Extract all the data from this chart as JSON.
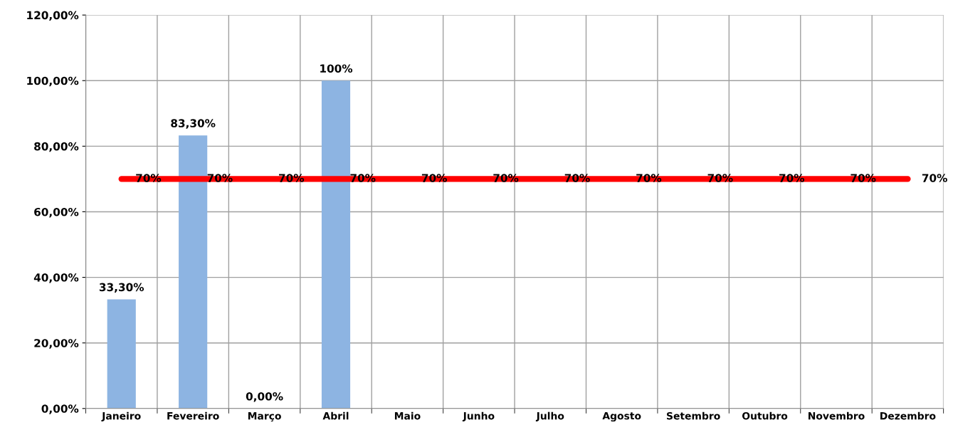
{
  "chart_data": {
    "type": "bar",
    "categories": [
      "Janeiro",
      "Fevereiro",
      "Março",
      "Abril",
      "Maio",
      "Junho",
      "Julho",
      "Agosto",
      "Setembro",
      "Outubro",
      "Novembro",
      "Dezembro"
    ],
    "series": [
      {
        "color": "#8db4e2",
        "values": [
          33.3,
          83.3,
          0,
          100,
          null,
          null,
          null,
          null,
          null,
          null,
          null,
          null
        ],
        "value_labels": [
          "33,30%",
          "83,30%",
          "0,00%",
          "100%",
          null,
          null,
          null,
          null,
          null,
          null,
          null,
          null
        ]
      },
      {
        "type": "line",
        "color": "#ff0000",
        "values": [
          70,
          70,
          70,
          70,
          70,
          70,
          70,
          70,
          70,
          70,
          70,
          70
        ],
        "value_labels": [
          "70%",
          "70%",
          "70%",
          "70%",
          "70%",
          "70%",
          "70%",
          "70%",
          "70%",
          "70%",
          "70%",
          "70%"
        ]
      }
    ],
    "ylim": [
      0,
      120
    ],
    "yticks": [
      {
        "value": 0,
        "label": "0,00%"
      },
      {
        "value": 20,
        "label": "20,00%"
      },
      {
        "value": 40,
        "label": "40,00%"
      },
      {
        "value": 60,
        "label": "60,00%"
      },
      {
        "value": 80,
        "label": "80,00%"
      },
      {
        "value": 100,
        "label": "100,00%"
      },
      {
        "value": 120,
        "label": "120,00%"
      }
    ],
    "grid": true,
    "legend": false
  }
}
